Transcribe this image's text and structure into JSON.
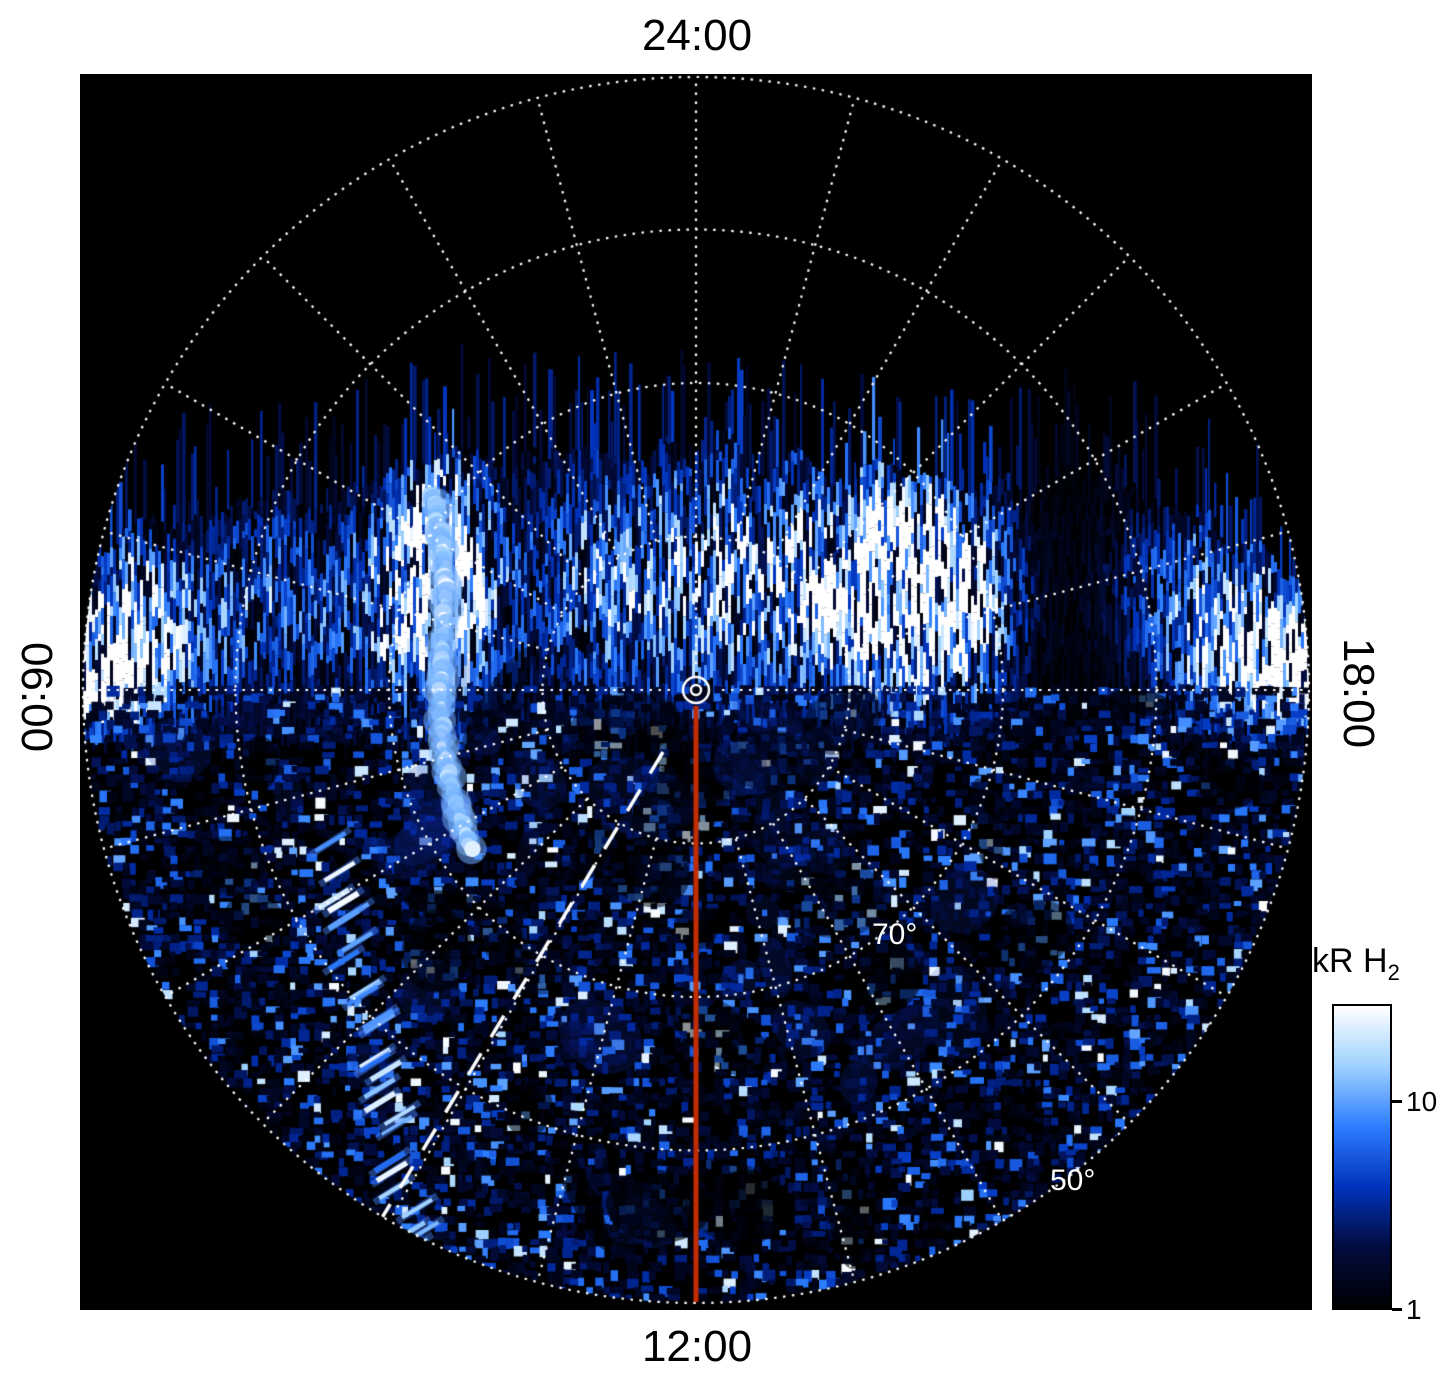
{
  "figure": {
    "background_color": "#ffffff",
    "plot_background": "#000000"
  },
  "chart_data": {
    "type": "heatmap",
    "projection": "polar",
    "title": "",
    "description": "Polar projection of H2 auroral emission brightness versus latitude and local time. The nightside sector (top) is black (no data); a bright striated auroral band spans 70-80 degrees latitude from dawn through midnight to dusk; the dayside hemisphere (bottom) shows speckled low-level emission of a few kR.",
    "angular_axis": {
      "unit": "local time",
      "clock_labels": [
        {
          "text": "24:00",
          "position": "top"
        },
        {
          "text": "12:00",
          "position": "bottom"
        },
        {
          "text": "06:00",
          "position": "left"
        },
        {
          "text": "18:00",
          "position": "right"
        }
      ],
      "spoke_interval_hours": 1
    },
    "radial_axis": {
      "unit": "degrees latitude",
      "outer_ring_lat": 50,
      "rings": [
        {
          "lat": 80,
          "label": ""
        },
        {
          "lat": 70,
          "label": "70°"
        },
        {
          "lat": 60,
          "label": ""
        },
        {
          "lat": 50,
          "label": "50°"
        }
      ]
    },
    "grid": {
      "color": "#ffffff",
      "line_style": "dotted"
    },
    "colorbar": {
      "label_main": "kR H",
      "label_sub": "2",
      "scale": "log",
      "ticks": [
        {
          "value": 10,
          "label": "10",
          "fraction_from_top": 0.32
        },
        {
          "value": 1,
          "label": "1",
          "fraction_from_top": 1.0
        }
      ],
      "colors_bottom_to_top": [
        "#000000",
        "#020b3e",
        "#0033bb",
        "#2d7dff",
        "#9ed1ff",
        "#ffffff"
      ]
    },
    "annotations": {
      "noon_meridian_line": {
        "color": "#c22d00",
        "from": "pole",
        "to": "12:00",
        "style": "solid"
      },
      "dashed_ray": {
        "color": "#ffffff",
        "style": "dashed",
        "direction": "from pole toward lower-left (pre-noon sector)"
      },
      "pole_marker": {
        "shape": "double-circle",
        "color": "#ffffff"
      }
    },
    "features": [
      {
        "name": "main auroral band",
        "location": "70°–80° latitude across dawn–midnight–dusk",
        "intensity": "bright, saturating to white"
      },
      {
        "name": "bright curved arc",
        "location": "pre-noon sector, ~75°–80°",
        "intensity": "very bright"
      },
      {
        "name": "dayside speckle",
        "location": "dayside hemisphere, 50°–90°",
        "intensity": "~1–10 kR noise-like"
      }
    ]
  }
}
